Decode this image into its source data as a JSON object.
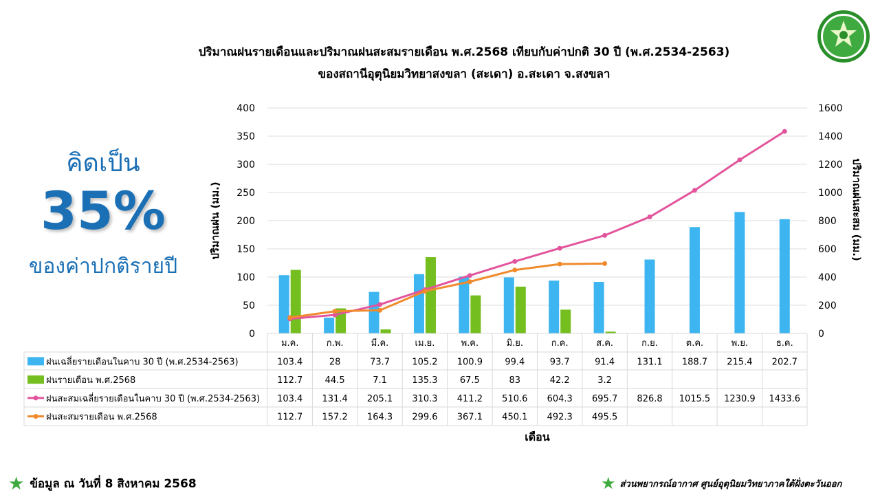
{
  "header": {
    "title_line1": "ปริมาณฝนรายเดือนและปริมาณฝนสะสมรายเดือน  พ.ศ.2568  เทียบกับค่าปกติ 30 ปี (พ.ศ.2534-2563)",
    "title_line2": "ของสถานีอุตุนิยมวิทยาสงขลา  (สะเดา) อ.สะเดา จ.สงขลา"
  },
  "side": {
    "line1": "คิดเป็น",
    "percent": "35%",
    "line2": "ของค่าปกติรายปี"
  },
  "footer": {
    "left": "ข้อมูล ณ วันที่ 8 สิงหาคม 2568",
    "right": "ส่วนพยากรณ์อากาศ ศูนย์อุตุนิยมวิทยาภาคใต้ฝั่งตะวันออก"
  },
  "colors": {
    "normal_monthly": "#3db5f0",
    "monthly_2568": "#74be1f",
    "normal_cumulative": "#e2549c",
    "cumulative_2568": "#f08a2c",
    "accent_blue": "#1a6fb5"
  },
  "logo": {
    "icon": "meteorological-department-seal-icon"
  },
  "chart_data": {
    "type": "bar",
    "categories": [
      "ม.ค.",
      "ก.พ.",
      "มี.ค.",
      "เม.ย.",
      "พ.ค.",
      "มิ.ย.",
      "ก.ค.",
      "ส.ค.",
      "ก.ย.",
      "ต.ค.",
      "พ.ย.",
      "ธ.ค."
    ],
    "xlabel": "เดือน",
    "ylabel": "ปริมาณฝน (มม.)",
    "y2label": "ปริมาณฝนสะสม (มม.)",
    "ylim": [
      0,
      400
    ],
    "y2lim": [
      0,
      1600
    ],
    "yticks": [
      0,
      50,
      100,
      150,
      200,
      250,
      300,
      350,
      400
    ],
    "y2ticks": [
      0,
      200,
      400,
      600,
      800,
      1000,
      1200,
      1400,
      1600
    ],
    "grid": true,
    "legend": "table-below",
    "series": [
      {
        "name": "ฝนเฉลี่ยรายเดือนในคาบ 30 ปี (พ.ศ.2534-2563)",
        "type": "bar",
        "axis": "left",
        "values": [
          103.4,
          28,
          73.7,
          105.2,
          100.9,
          99.4,
          93.7,
          91.4,
          131.1,
          188.7,
          215.4,
          202.7
        ]
      },
      {
        "name": "ฝนรายเดือน พ.ศ.2568",
        "type": "bar",
        "axis": "left",
        "values": [
          112.7,
          44.5,
          7.1,
          135.3,
          67.5,
          83,
          42.2,
          3.2,
          null,
          null,
          null,
          null
        ]
      },
      {
        "name": "ฝนสะสมเฉลี่ยรายเดือนในคาบ 30 ปี (พ.ศ.2534-2563)",
        "type": "line",
        "axis": "right",
        "values": [
          103.4,
          131.4,
          205.1,
          310.3,
          411.2,
          510.6,
          604.3,
          695.7,
          826.8,
          1015.5,
          1230.9,
          1433.6
        ]
      },
      {
        "name": "ฝนสะสมรายเดือน พ.ศ.2568",
        "type": "line",
        "axis": "right",
        "values": [
          112.7,
          157.2,
          164.3,
          299.6,
          367.1,
          450.1,
          492.3,
          495.5,
          null,
          null,
          null,
          null
        ]
      }
    ]
  }
}
